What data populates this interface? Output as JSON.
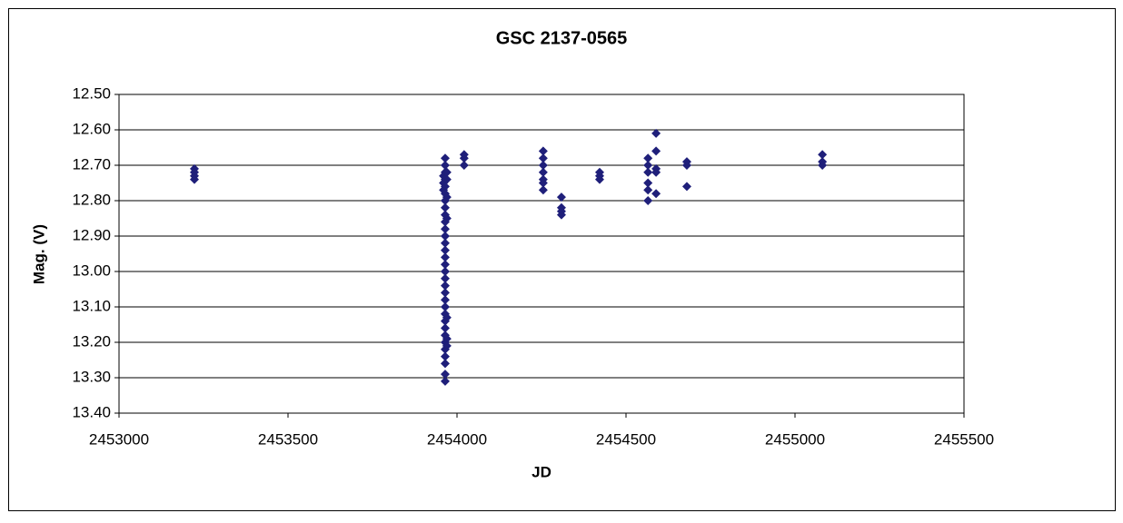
{
  "chart_data": {
    "type": "scatter",
    "title": "GSC 2137-0565",
    "x_label": "JD",
    "y_label": "Mag. (V)",
    "color": "#1f1f7a",
    "grid": true,
    "y_reversed": true,
    "x": [
      2453223,
      2453223,
      2453223,
      2453223,
      2453960,
      2453960,
      2453960,
      2453965,
      2453965,
      2453965,
      2453965,
      2453965,
      2453965,
      2453965,
      2453965,
      2453965,
      2453965,
      2453965,
      2453965,
      2453965,
      2453965,
      2453965,
      2453965,
      2453965,
      2453965,
      2453965,
      2453965,
      2453965,
      2453965,
      2453965,
      2453965,
      2453965,
      2453965,
      2453965,
      2453965,
      2453965,
      2453965,
      2453965,
      2453965,
      2453970,
      2453970,
      2453970,
      2453970,
      2453970,
      2453970,
      2453970,
      2454021,
      2454021,
      2454021,
      2454255,
      2454255,
      2454255,
      2454255,
      2454255,
      2454255,
      2454255,
      2454309,
      2454309,
      2454309,
      2454309,
      2454422,
      2454422,
      2454422,
      2454565,
      2454565,
      2454565,
      2454565,
      2454565,
      2454565,
      2454589,
      2454589,
      2454589,
      2454589,
      2454589,
      2454680,
      2454680,
      2454680,
      2455081,
      2455081,
      2455081
    ],
    "values": [
      12.71,
      12.72,
      12.73,
      12.74,
      12.73,
      12.75,
      12.77,
      12.68,
      12.7,
      12.72,
      12.74,
      12.76,
      12.78,
      12.8,
      12.82,
      12.84,
      12.86,
      12.88,
      12.9,
      12.92,
      12.94,
      12.96,
      12.98,
      13.0,
      13.02,
      13.04,
      13.06,
      13.08,
      13.1,
      13.12,
      13.14,
      13.16,
      13.18,
      13.2,
      13.22,
      13.24,
      13.26,
      13.29,
      13.31,
      12.72,
      12.74,
      12.79,
      12.85,
      13.13,
      13.19,
      13.21,
      12.67,
      12.68,
      12.7,
      12.66,
      12.68,
      12.7,
      12.72,
      12.74,
      12.75,
      12.77,
      12.79,
      12.82,
      12.83,
      12.84,
      12.72,
      12.73,
      12.74,
      12.68,
      12.7,
      12.72,
      12.75,
      12.77,
      12.8,
      12.61,
      12.66,
      12.71,
      12.72,
      12.78,
      12.69,
      12.7,
      12.76,
      12.67,
      12.69,
      12.7
    ],
    "xlim": [
      2453000,
      2455500
    ],
    "xticks": [
      2453000,
      2453500,
      2454000,
      2454500,
      2455000,
      2455500
    ],
    "ylim": [
      12.5,
      13.4
    ],
    "yticks": [
      {
        "value": 12.5,
        "label": "12.50"
      },
      {
        "value": 12.6,
        "label": "12.60"
      },
      {
        "value": 12.7,
        "label": "12.70"
      },
      {
        "value": 12.8,
        "label": "12.80"
      },
      {
        "value": 12.9,
        "label": "12.90"
      },
      {
        "value": 13.0,
        "label": "13.00"
      },
      {
        "value": 13.1,
        "label": "13.10"
      },
      {
        "value": 13.2,
        "label": "13.20"
      },
      {
        "value": 13.3,
        "label": "13.30"
      },
      {
        "value": 13.4,
        "label": "13.40"
      }
    ]
  }
}
